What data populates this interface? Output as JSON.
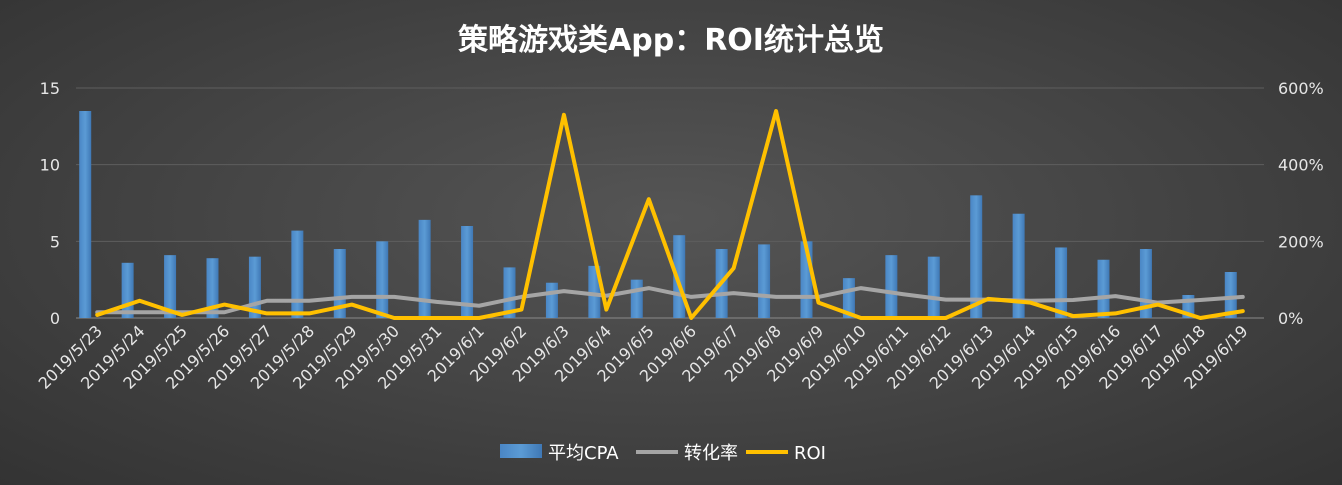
{
  "chart_data": {
    "type": "bar",
    "title": "策略游戏类App：ROI统计总览",
    "xlabel": "",
    "ylabel": "",
    "categories": [
      "2019/5/23",
      "2019/5/24",
      "2019/5/25",
      "2019/5/26",
      "2019/5/27",
      "2019/5/28",
      "2019/5/29",
      "2019/5/30",
      "2019/5/31",
      "2019/6/1",
      "2019/6/2",
      "2019/6/3",
      "2019/6/4",
      "2019/6/5",
      "2019/6/6",
      "2019/6/7",
      "2019/6/8",
      "2019/6/9",
      "2019/6/10",
      "2019/6/11",
      "2019/6/12",
      "2019/6/13",
      "2019/6/14",
      "2019/6/15",
      "2019/6/16",
      "2019/6/17",
      "2019/6/18",
      "2019/6/19"
    ],
    "y_left": {
      "min": 0,
      "max": 15,
      "ticks": [
        0,
        5,
        10,
        15
      ],
      "tick_labels": [
        "0",
        "5",
        "10",
        "15"
      ]
    },
    "y_right": {
      "min": 0,
      "max": 6,
      "ticks": [
        0,
        2,
        4,
        6
      ],
      "tick_labels": [
        "0%",
        "200%",
        "400%",
        "600%"
      ]
    },
    "grid": true,
    "legend_position": "bottom",
    "series": [
      {
        "name": "平均CPA",
        "type": "bar",
        "axis": "left",
        "color": "#5b9bd5",
        "values": [
          13.5,
          3.6,
          4.1,
          3.9,
          4.0,
          5.7,
          4.5,
          5.0,
          6.4,
          6.0,
          3.3,
          2.3,
          3.4,
          2.5,
          5.4,
          4.5,
          4.8,
          5.0,
          2.6,
          4.1,
          4.0,
          8.0,
          6.8,
          4.6,
          3.8,
          4.5,
          1.5,
          3.0
        ]
      },
      {
        "name": "转化率",
        "type": "line",
        "axis": "right",
        "color": "#a5a5a5",
        "values": [
          0.15,
          0.15,
          0.15,
          0.15,
          0.45,
          0.45,
          0.55,
          0.55,
          0.42,
          0.32,
          0.55,
          0.7,
          0.58,
          0.78,
          0.55,
          0.65,
          0.55,
          0.55,
          0.78,
          0.62,
          0.48,
          0.48,
          0.45,
          0.47,
          0.57,
          0.4,
          0.47,
          0.55
        ]
      },
      {
        "name": "ROI",
        "type": "line",
        "axis": "right",
        "color": "#ffc000",
        "values": [
          0.08,
          0.45,
          0.08,
          0.35,
          0.12,
          0.12,
          0.35,
          0.0,
          0.0,
          0.0,
          0.22,
          5.3,
          0.22,
          3.1,
          0.0,
          1.3,
          5.4,
          0.4,
          0.0,
          0.0,
          0.0,
          0.5,
          0.4,
          0.05,
          0.12,
          0.35,
          0.0,
          0.18
        ]
      }
    ]
  }
}
